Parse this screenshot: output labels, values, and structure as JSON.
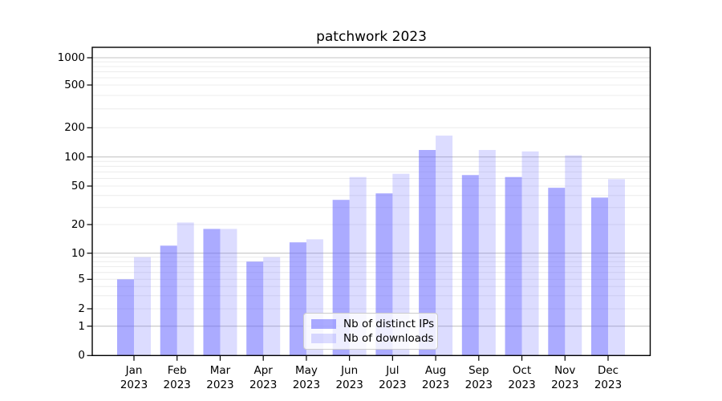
{
  "chart_data": {
    "type": "bar",
    "title": "patchwork 2023",
    "categories": [
      "Jan",
      "Feb",
      "Mar",
      "Apr",
      "May",
      "Jun",
      "Jul",
      "Aug",
      "Sep",
      "Oct",
      "Nov",
      "Dec"
    ],
    "year_label": "2023",
    "series": [
      {
        "name": "Nb of distinct IPs",
        "color": "#6666ff",
        "alpha": 0.55,
        "values": [
          5,
          12,
          18,
          8,
          13,
          36,
          42,
          118,
          65,
          62,
          48,
          38
        ]
      },
      {
        "name": "Nb of downloads",
        "color": "#6666ff",
        "alpha": 0.23,
        "values": [
          9,
          21,
          18,
          9,
          14,
          62,
          67,
          166,
          118,
          114,
          104,
          59
        ]
      }
    ],
    "y_ticks": [
      0,
      1,
      2,
      5,
      10,
      20,
      50,
      100,
      200,
      500,
      1000
    ],
    "y_scale": "symlog",
    "ylim": [
      0,
      1270
    ],
    "xlabel": "",
    "ylabel": "",
    "grid": "on",
    "legend_position": "lower center",
    "colors": {
      "bar_base": "#6666ff",
      "major_grid": "#c6c6c6",
      "minor_grid": "#ececec",
      "axis": "#000000",
      "background": "#ffffff"
    }
  }
}
